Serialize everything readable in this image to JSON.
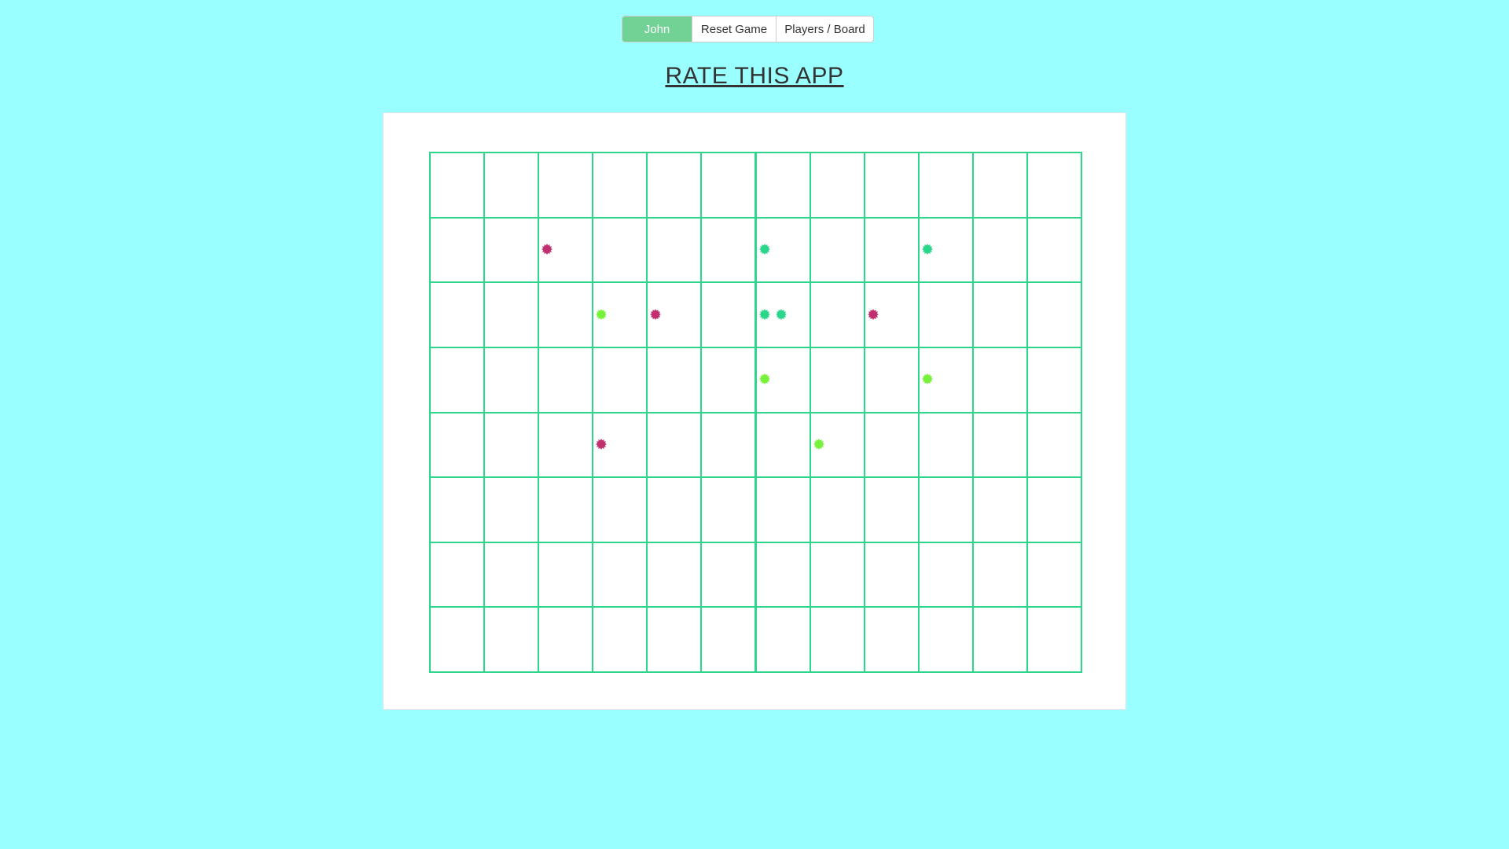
{
  "toolbar": {
    "current_player": "John",
    "reset_label": "Reset Game",
    "players_board_label": "Players / Board"
  },
  "title": "RATE THIS APP",
  "colors": {
    "background": "#99ffff",
    "grid_line": "#2dd68a",
    "player_button": "#72d295"
  },
  "board": {
    "columns": 12,
    "rows": 8,
    "pieces": [
      {
        "row": 1,
        "col": 2,
        "slot": 0,
        "color": "#c0306e"
      },
      {
        "row": 1,
        "col": 6,
        "slot": 0,
        "color": "#2ad68a"
      },
      {
        "row": 1,
        "col": 9,
        "slot": 0,
        "color": "#2ad68a"
      },
      {
        "row": 2,
        "col": 3,
        "slot": 0,
        "color": "#77f23a"
      },
      {
        "row": 2,
        "col": 4,
        "slot": 0,
        "color": "#c0306e"
      },
      {
        "row": 2,
        "col": 6,
        "slot": 0,
        "color": "#2ad68a"
      },
      {
        "row": 2,
        "col": 6,
        "slot": 1,
        "color": "#2ad68a"
      },
      {
        "row": 2,
        "col": 8,
        "slot": 0,
        "color": "#c0306e"
      },
      {
        "row": 3,
        "col": 6,
        "slot": 0,
        "color": "#77f23a"
      },
      {
        "row": 3,
        "col": 9,
        "slot": 0,
        "color": "#77f23a"
      },
      {
        "row": 4,
        "col": 3,
        "slot": 0,
        "color": "#c0306e"
      },
      {
        "row": 4,
        "col": 7,
        "slot": 0,
        "color": "#77f23a"
      }
    ]
  }
}
